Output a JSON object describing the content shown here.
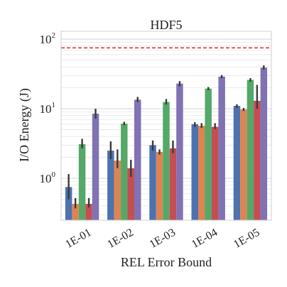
{
  "chart_data": {
    "type": "bar",
    "title": "HDF5",
    "xlabel": "REL Error Bound",
    "ylabel": "I/O Energy (J)",
    "yscale": "log",
    "ylim": [
      0.25,
      130
    ],
    "ytick_values": [
      1,
      10,
      100
    ],
    "ytick_labels": [
      {
        "base": "10",
        "exp": "0"
      },
      {
        "base": "10",
        "exp": "1"
      },
      {
        "base": "10",
        "exp": "2"
      }
    ],
    "grid": true,
    "categories": [
      "1E-01",
      "1E-02",
      "1E-03",
      "1E-04",
      "1E-05"
    ],
    "series": [
      {
        "color": "#4c72b0",
        "values": [
          0.75,
          2.5,
          3.0,
          6.0,
          11.0
        ],
        "err_low": [
          0.5,
          1.9,
          2.5,
          5.5,
          10.3
        ],
        "err_high": [
          1.15,
          3.4,
          3.5,
          6.4,
          11.6
        ]
      },
      {
        "color": "#dd8452",
        "values": [
          0.43,
          1.8,
          2.4,
          5.7,
          9.8
        ],
        "err_low": [
          0.37,
          1.4,
          2.2,
          5.3,
          9.3
        ],
        "err_high": [
          0.52,
          2.6,
          2.6,
          6.2,
          10.3
        ]
      },
      {
        "color": "#55a868",
        "values": [
          3.1,
          6.1,
          12.5,
          19.5,
          26.0
        ],
        "err_low": [
          2.7,
          5.8,
          11.5,
          18.5,
          24.5
        ],
        "err_high": [
          3.7,
          6.5,
          13.8,
          20.5,
          27.5
        ]
      },
      {
        "color": "#c44e52",
        "values": [
          0.43,
          1.4,
          2.7,
          5.5,
          13.0
        ],
        "err_low": [
          0.38,
          1.05,
          2.3,
          5.1,
          10.0
        ],
        "err_high": [
          0.52,
          1.85,
          3.5,
          6.2,
          22.0
        ]
      },
      {
        "color": "#8172b3",
        "values": [
          8.5,
          13.5,
          23.0,
          29.0,
          39.0
        ],
        "err_low": [
          7.2,
          12.5,
          21.0,
          27.5,
          36.5
        ],
        "err_high": [
          10.0,
          14.8,
          25.0,
          30.5,
          42.0
        ]
      }
    ],
    "reference_line": {
      "value": 75,
      "color": "#d62728",
      "style": "dashed"
    }
  }
}
